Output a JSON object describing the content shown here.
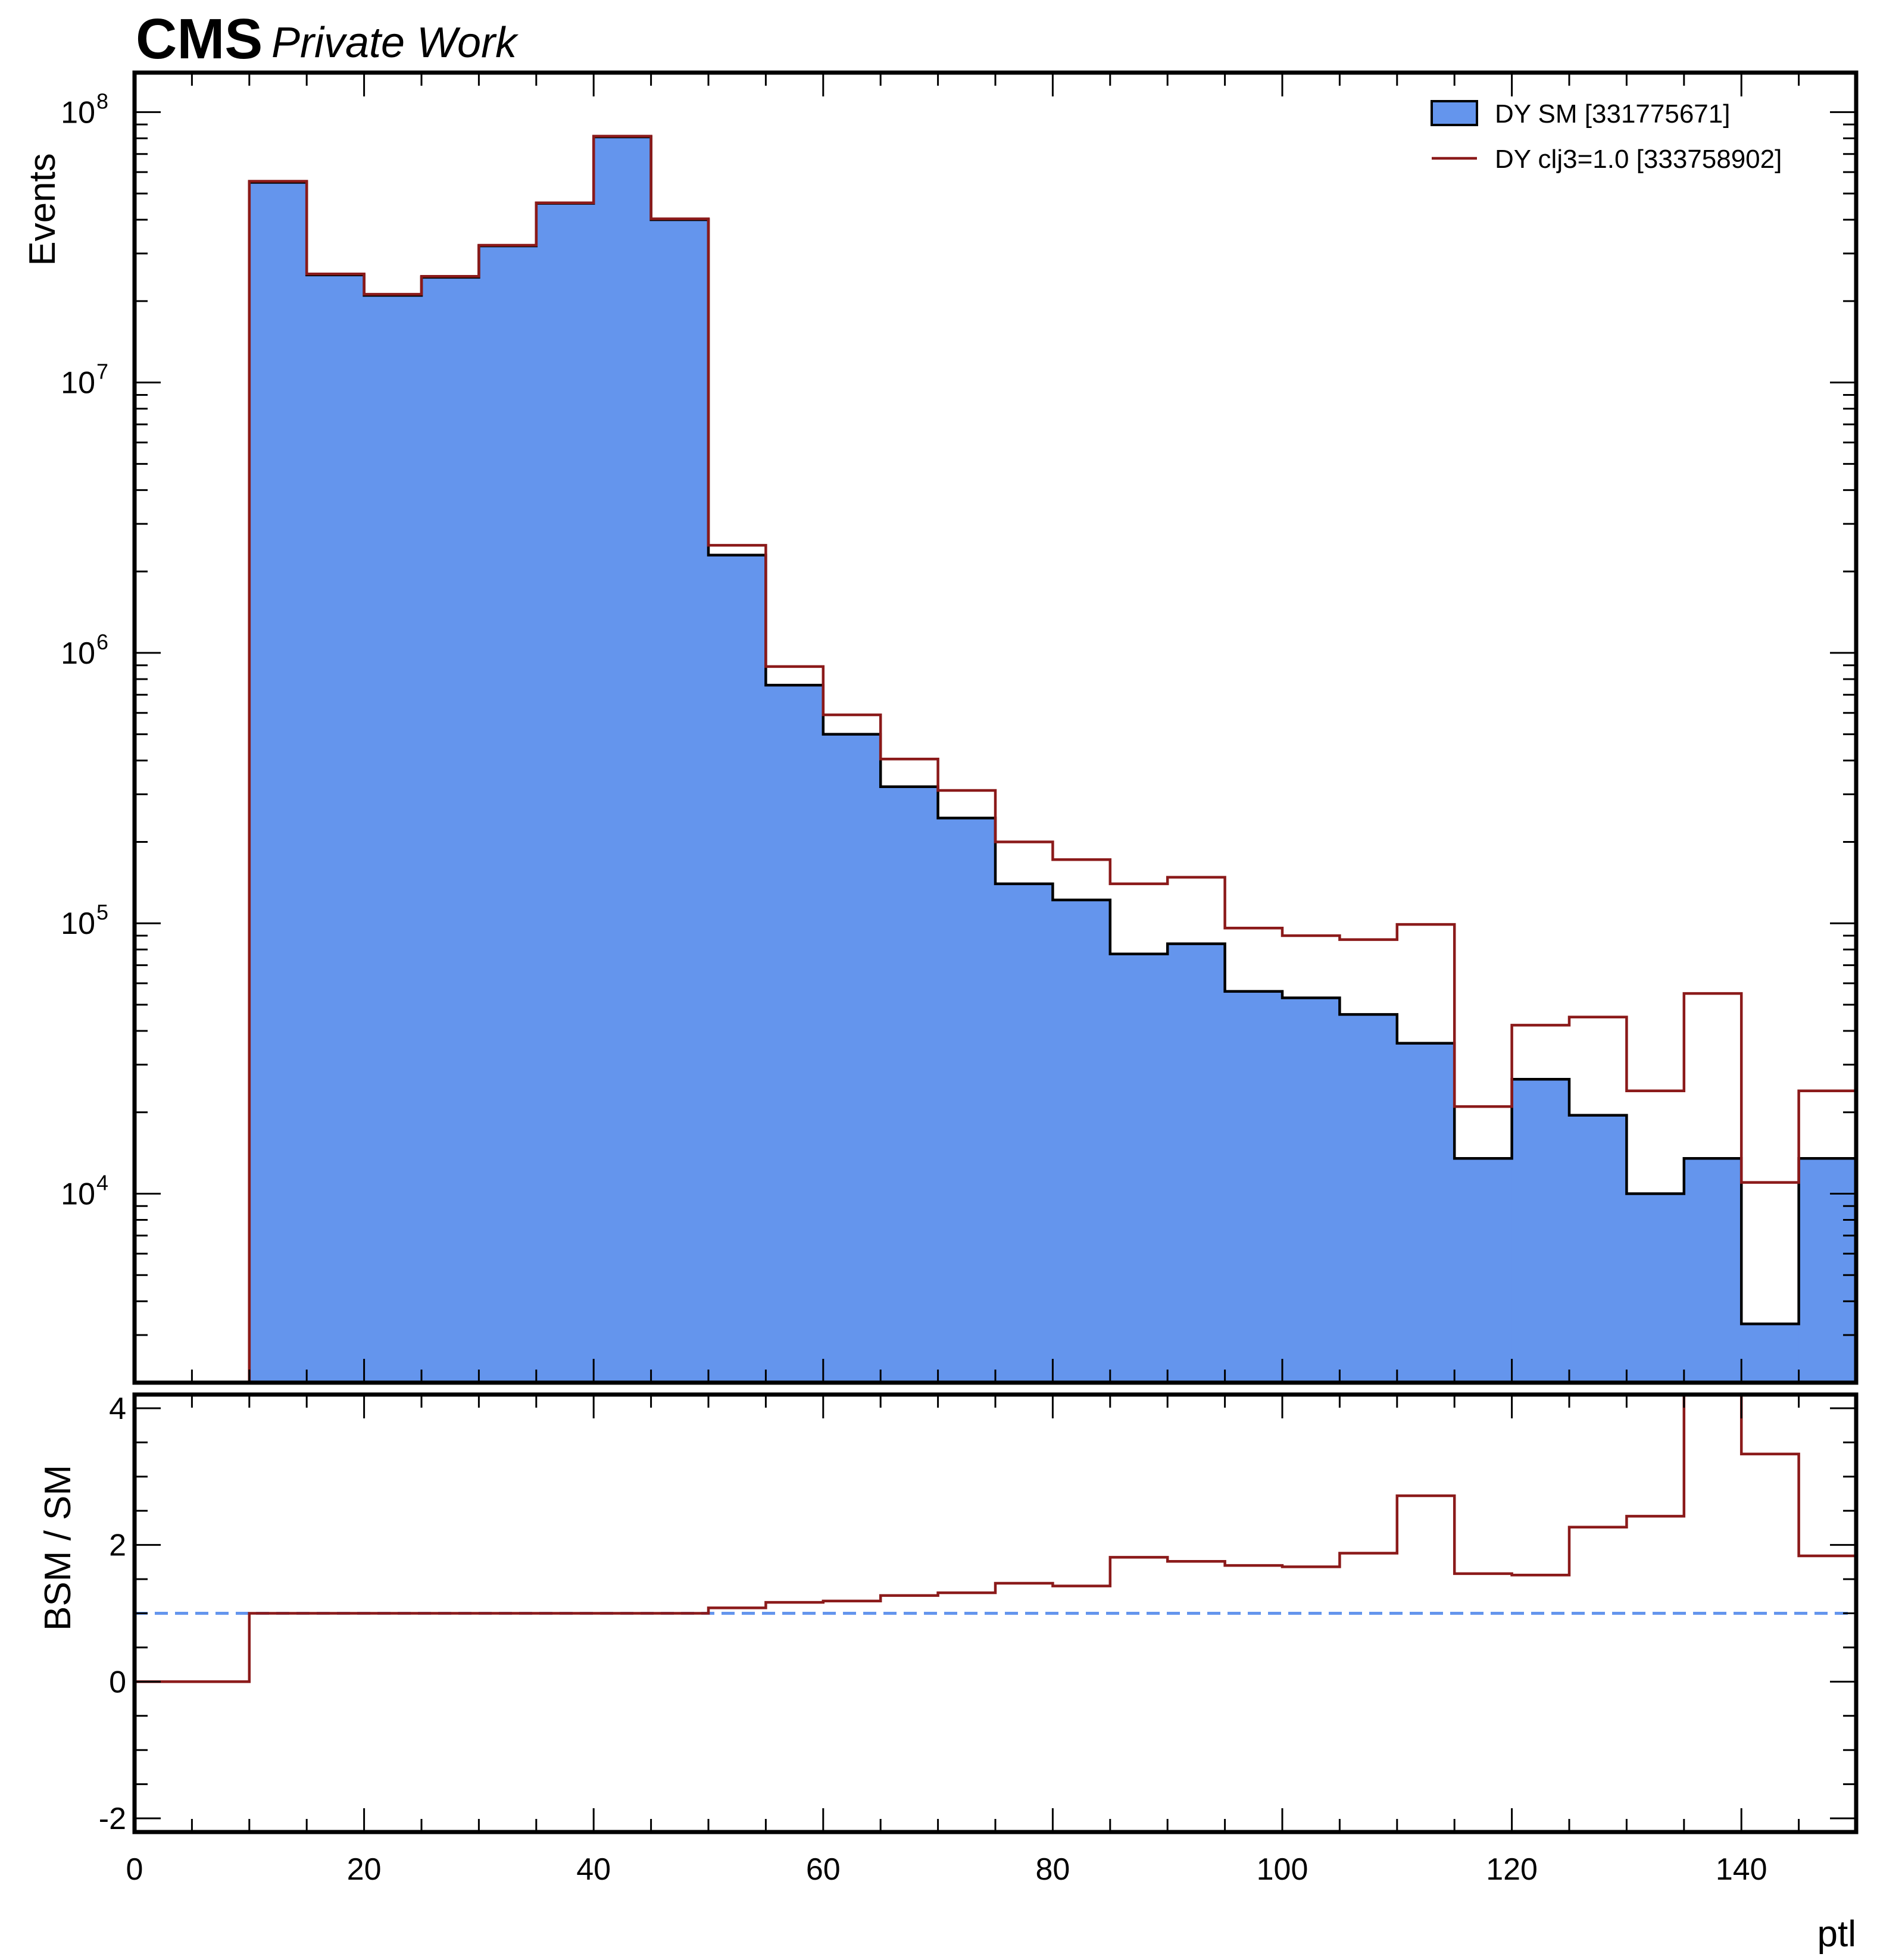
{
  "header": {
    "experiment": "CMS",
    "label": "Private Work"
  },
  "chart_data": [
    {
      "type": "histogram",
      "xlabel": "",
      "ylabel": "Events",
      "yscale": "log",
      "xlim": [
        0,
        150
      ],
      "ylim": [
        2000,
        140000000
      ],
      "y_ticks": [
        {
          "value": 10000,
          "mantissa": "10",
          "exp": "4"
        },
        {
          "value": 100000,
          "mantissa": "10",
          "exp": "5"
        },
        {
          "value": 1000000,
          "mantissa": "10",
          "exp": "6"
        },
        {
          "value": 10000000,
          "mantissa": "10",
          "exp": "7"
        },
        {
          "value": 100000000,
          "mantissa": "10",
          "exp": "8"
        }
      ],
      "bin_edges": [
        0,
        5,
        10,
        15,
        20,
        25,
        30,
        35,
        40,
        45,
        50,
        55,
        60,
        65,
        70,
        75,
        80,
        85,
        90,
        95,
        100,
        105,
        110,
        115,
        120,
        125,
        130,
        135,
        140,
        145,
        150
      ],
      "legend": {
        "position": "top-right"
      },
      "series": [
        {
          "name": "DY SM [331775671]",
          "style": "filled",
          "fill": "#6495ed",
          "edge": "#000000",
          "values": [
            0,
            0,
            55000000,
            25000000,
            21000000,
            24500000,
            32000000,
            46000000,
            81000000,
            40000000,
            2300000,
            760000,
            500000,
            320000,
            245000,
            140000,
            122000,
            77000,
            84000,
            56000,
            53000,
            46000,
            36000,
            13500,
            26500,
            19500,
            10000,
            13500,
            3300,
            13500
          ]
        },
        {
          "name": "DY clj3=1.0 [333758902]",
          "style": "step",
          "color": "#8b1a1a",
          "values": [
            0,
            0,
            55500000,
            25200000,
            21200000,
            24700000,
            32200000,
            46200000,
            81500000,
            40300000,
            2500000,
            890000,
            590000,
            405000,
            310000,
            200000,
            172000,
            140000,
            148000,
            96000,
            90000,
            87000,
            99000,
            21000,
            42000,
            45000,
            24000,
            55000,
            11000,
            24000
          ]
        }
      ]
    },
    {
      "type": "step",
      "xlabel": "ptl",
      "ylabel": "BSM / SM",
      "xlim": [
        0,
        150
      ],
      "ylim": [
        -2.2,
        4.2
      ],
      "x_ticks": [
        0,
        20,
        40,
        60,
        80,
        100,
        120,
        140
      ],
      "y_ticks": [
        -2,
        0,
        2,
        4
      ],
      "reference_line": {
        "y": 1,
        "style": "dashed",
        "color": "#6495ed"
      },
      "series": [
        {
          "color": "#8b1a1a",
          "values": [
            0,
            0,
            1.0,
            1.0,
            1.0,
            1.0,
            1.0,
            1.0,
            1.0,
            1.0,
            1.08,
            1.16,
            1.18,
            1.26,
            1.3,
            1.44,
            1.4,
            1.82,
            1.76,
            1.7,
            1.68,
            1.88,
            2.72,
            1.58,
            1.56,
            2.26,
            2.42,
            4.4,
            3.33,
            1.84
          ]
        }
      ]
    }
  ]
}
